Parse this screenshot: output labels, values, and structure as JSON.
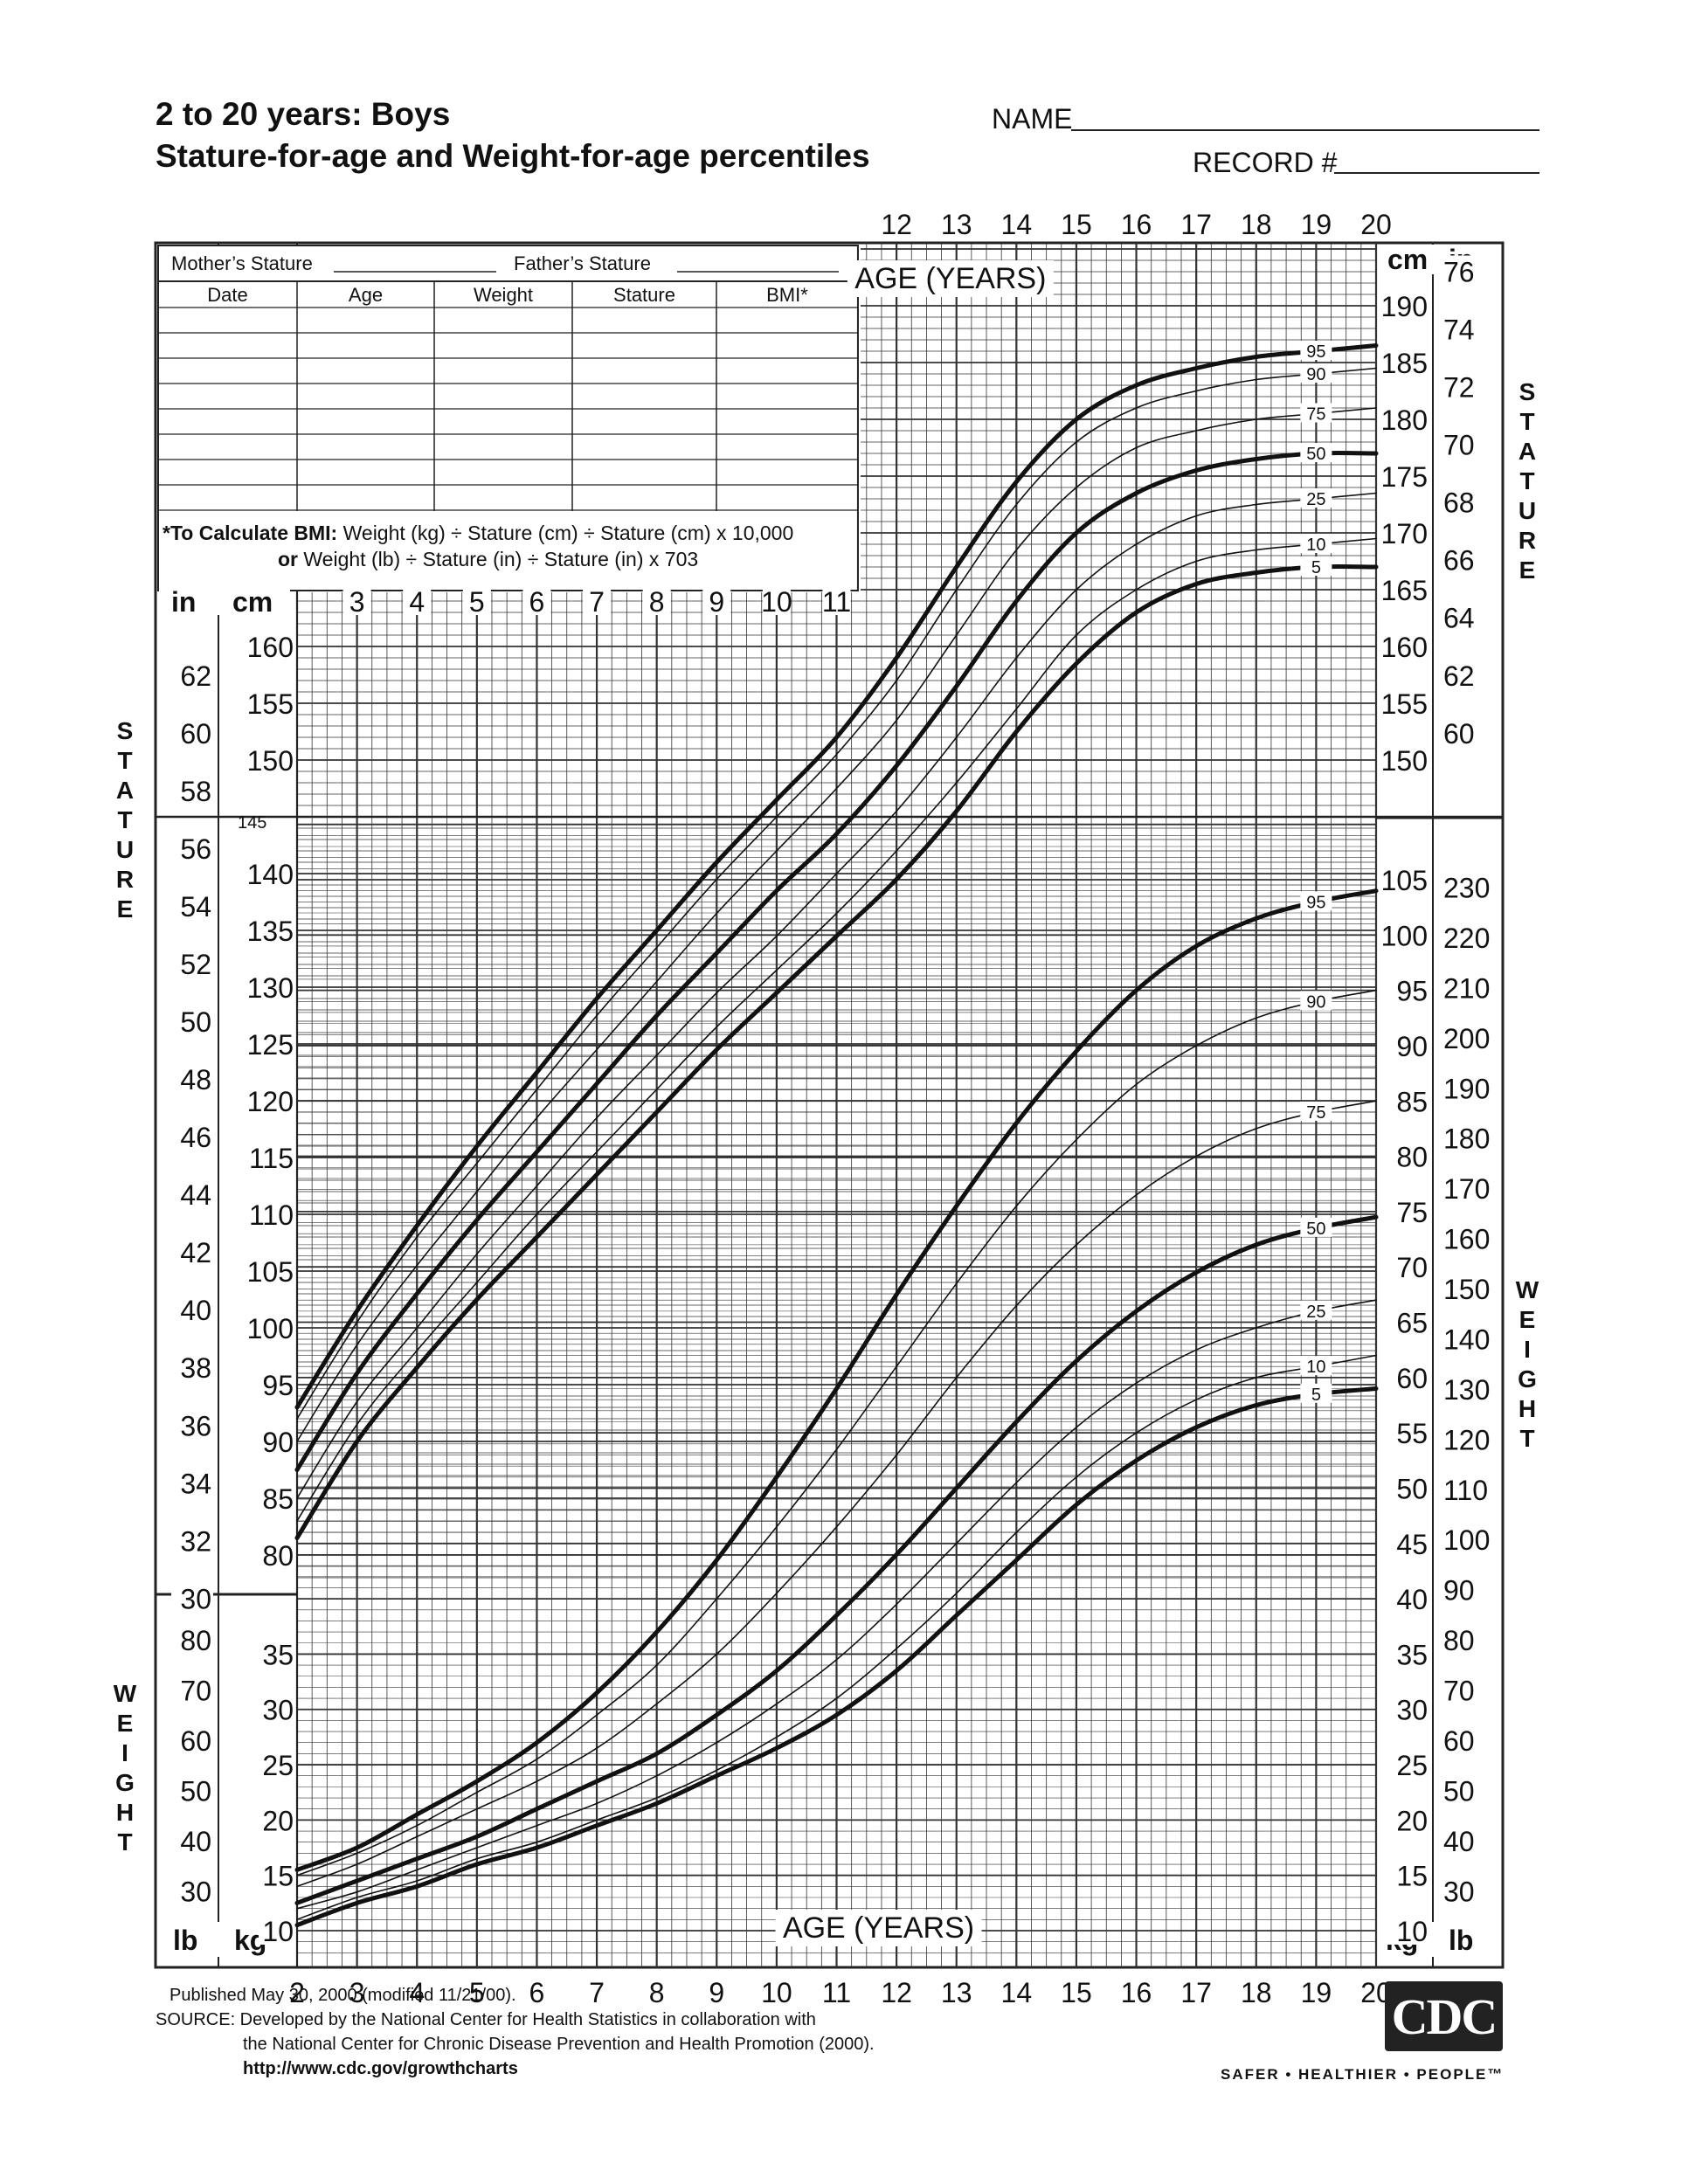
{
  "header": {
    "title_line1": "2 to 20 years: Boys",
    "title_line2": "Stature-for-age and Weight-for-age percentiles",
    "name_label": "NAME",
    "record_label": "RECORD #"
  },
  "record_table": {
    "mothers_stature_label": "Mother’s Stature",
    "fathers_stature_label": "Father’s Stature",
    "columns": [
      "Date",
      "Age",
      "Weight",
      "Stature",
      "BMI*"
    ],
    "bmi_note_bold": "*To Calculate BMI:",
    "bmi_note_line1": "Weight (kg) ÷ Stature (cm) ÷ Stature (cm) x 10,000",
    "bmi_note_bold2": "or",
    "bmi_note_line2": "Weight (lb) ÷ Stature (in) ÷ Stature (in) x 703"
  },
  "side_labels": {
    "stature": "STATURE",
    "weight": "WEIGHT"
  },
  "chart_data": {
    "type": "line",
    "age_axis_label": "AGE (YEARS)",
    "age_range": [
      2,
      20
    ],
    "age_ticks_bottom": [
      2,
      3,
      4,
      5,
      6,
      7,
      8,
      9,
      10,
      11,
      12,
      13,
      14,
      15,
      16,
      17,
      18,
      19,
      20
    ],
    "age_ticks_top": [
      12,
      13,
      14,
      15,
      16,
      17,
      18,
      19,
      20
    ],
    "age_ticks_mid": [
      3,
      4,
      5,
      6,
      7,
      8,
      9,
      10,
      11
    ],
    "stature": {
      "unit_cm": "cm",
      "unit_in": "in",
      "ylim_cm": [
        77,
        197
      ],
      "left_cm_ticks": [
        80,
        85,
        90,
        95,
        100,
        105,
        110,
        115,
        120,
        125,
        130,
        135,
        140,
        145,
        150,
        155,
        160
      ],
      "left_in_ticks": [
        30,
        32,
        34,
        36,
        38,
        40,
        42,
        44,
        46,
        48,
        50,
        52,
        54,
        56,
        58,
        60,
        62
      ],
      "right_cm_ticks": [
        150,
        155,
        160,
        165,
        170,
        175,
        180,
        185,
        190
      ],
      "right_in_ticks": [
        60,
        62,
        64,
        66,
        68,
        70,
        72,
        74,
        76
      ],
      "percentile_labels": [
        "95",
        "90",
        "75",
        "50",
        "25",
        "10",
        "5"
      ],
      "ages": [
        2,
        3,
        4,
        5,
        6,
        7,
        8,
        9,
        10,
        11,
        12,
        13,
        14,
        15,
        16,
        17,
        18,
        19,
        20
      ],
      "series": [
        {
          "name": "95",
          "values": [
            93,
            101.5,
            109,
            116,
            122.5,
            129,
            135,
            141,
            146.5,
            152,
            159,
            167,
            174.5,
            180,
            183,
            184.5,
            185.5,
            186,
            186.5
          ]
        },
        {
          "name": "90",
          "values": [
            92,
            100.5,
            108,
            114.5,
            121,
            127.5,
            133.5,
            139.5,
            145,
            150.5,
            157,
            165,
            172.5,
            178,
            181,
            182.5,
            183.5,
            184,
            184.5
          ]
        },
        {
          "name": "75",
          "values": [
            90,
            98.5,
            105.5,
            112,
            118.5,
            124.5,
            130.5,
            136.5,
            142,
            147.5,
            153.5,
            161,
            168.5,
            174,
            177.5,
            179,
            180,
            180.5,
            181
          ]
        },
        {
          "name": "50",
          "values": [
            87.5,
            96,
            103,
            109.5,
            115.5,
            121.5,
            127.5,
            133,
            138.5,
            143.5,
            149.5,
            156.5,
            164,
            170,
            173.5,
            175.5,
            176.5,
            177,
            177
          ]
        },
        {
          "name": "25",
          "values": [
            85,
            93.5,
            100,
            106.5,
            112.5,
            118.5,
            124,
            129.5,
            134.5,
            140,
            145.5,
            152,
            159,
            165,
            169,
            171.5,
            172.5,
            173,
            173.5
          ]
        },
        {
          "name": "10",
          "values": [
            83,
            91.5,
            98,
            104,
            110,
            115.5,
            121,
            126.5,
            131.5,
            136.5,
            142,
            148,
            154.5,
            161,
            165,
            167.5,
            168.5,
            169,
            169.5
          ]
        },
        {
          "name": "5",
          "values": [
            81.5,
            90,
            96.5,
            102.5,
            108,
            113.5,
            119,
            124.5,
            129.5,
            134.5,
            139.5,
            145.5,
            152.5,
            158.5,
            163,
            165.5,
            166.5,
            167,
            167
          ]
        }
      ]
    },
    "weight": {
      "unit_kg": "kg",
      "unit_lb": "lb",
      "ylim_kg": [
        8,
        112
      ],
      "left_kg_ticks": [
        10,
        15,
        20,
        25,
        30,
        35
      ],
      "left_lb_ticks": [
        30,
        40,
        50,
        60,
        70,
        80
      ],
      "right_kg_ticks": [
        10,
        15,
        20,
        25,
        30,
        35,
        40,
        45,
        50,
        55,
        60,
        65,
        70,
        75,
        80,
        85,
        90,
        95,
        100,
        105
      ],
      "right_lb_ticks": [
        30,
        40,
        50,
        60,
        70,
        80,
        90,
        100,
        110,
        120,
        130,
        140,
        150,
        160,
        170,
        180,
        190,
        200,
        210,
        220,
        230
      ],
      "percentile_labels": [
        "95",
        "90",
        "75",
        "50",
        "25",
        "10",
        "5"
      ],
      "ages": [
        2,
        3,
        4,
        5,
        6,
        7,
        8,
        9,
        10,
        11,
        12,
        13,
        14,
        15,
        16,
        17,
        18,
        19,
        20
      ],
      "series": [
        {
          "name": "95",
          "values": [
            15.5,
            17.5,
            20.5,
            23.5,
            27,
            31.5,
            37,
            43.5,
            51,
            59,
            67.5,
            75.5,
            83,
            89.5,
            95,
            99,
            101.5,
            103,
            104
          ]
        },
        {
          "name": "90",
          "values": [
            15,
            17,
            19.5,
            22.5,
            25.5,
            29.5,
            34,
            40,
            46.5,
            53.5,
            61,
            68.5,
            75.5,
            81.5,
            86.5,
            90,
            92.5,
            94,
            95
          ]
        },
        {
          "name": "75",
          "values": [
            14,
            16,
            18.5,
            21,
            23.5,
            26.5,
            30.5,
            35,
            40.5,
            46.5,
            53,
            60,
            66.5,
            72,
            76.5,
            80,
            82.5,
            84,
            85
          ]
        },
        {
          "name": "50",
          "values": [
            12.5,
            14.5,
            16.5,
            18.5,
            21,
            23.5,
            26,
            29.5,
            33.5,
            38.5,
            44,
            50,
            56,
            61.5,
            66,
            69.5,
            72,
            73.5,
            74.5
          ]
        },
        {
          "name": "25",
          "values": [
            12,
            13.5,
            15.5,
            17.5,
            19.5,
            21.5,
            24,
            27,
            30.5,
            34.5,
            39.5,
            45,
            50.5,
            55.5,
            59.5,
            62.5,
            64.5,
            66,
            67
          ]
        },
        {
          "name": "10",
          "values": [
            11,
            13,
            14.5,
            16.5,
            18,
            20,
            22,
            24.5,
            27.5,
            31,
            35.5,
            40.5,
            46,
            51,
            55,
            58,
            60,
            61,
            62
          ]
        },
        {
          "name": "5",
          "values": [
            10.5,
            12.5,
            14,
            16,
            17.5,
            19.5,
            21.5,
            24,
            26.5,
            29.5,
            33.5,
            38.5,
            43.5,
            48.5,
            52.5,
            55.5,
            57.5,
            58.5,
            59
          ]
        }
      ]
    }
  },
  "footer": {
    "published": "Published May 30, 2000 (modified 11/21/00).",
    "source_line1": "SOURCE: Developed by the National Center for Health Statistics in collaboration with",
    "source_line2": "the National Center for Chronic Disease Prevention and Health Promotion (2000).",
    "url": "http://www.cdc.gov/growthcharts",
    "logo_text": "CDC",
    "tagline": "SAFER • HEALTHIER • PEOPLE™"
  }
}
